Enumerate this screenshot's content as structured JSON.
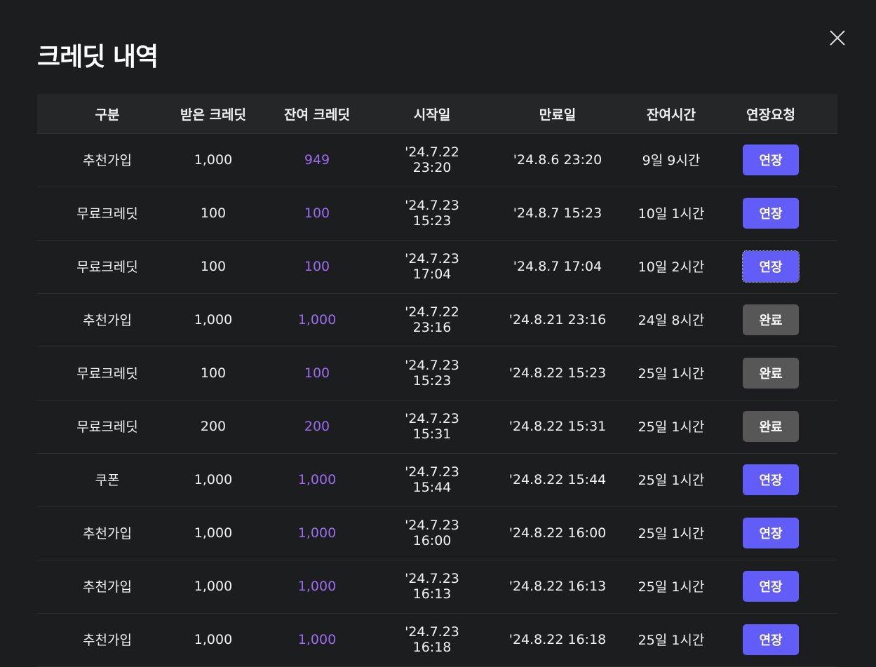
{
  "title": "크레딧 내역",
  "colors": {
    "accent": "#625cf8",
    "done": "#575757",
    "remaining": "#9b6cf0"
  },
  "columns": [
    "구분",
    "받은 크레딧",
    "잔여 크레딧",
    "시작일",
    "만료일",
    "잔여시간",
    "연장요청"
  ],
  "rows": [
    {
      "type": "추천가입",
      "received": "1,000",
      "remaining": "949",
      "start": "'24.7.22  23:20",
      "end": "'24.8.6  23:20",
      "time_left": "9일 9시간",
      "action": "연장",
      "status": "extend"
    },
    {
      "type": "무료크레딧",
      "received": "100",
      "remaining": "100",
      "start": "'24.7.23  15:23",
      "end": "'24.8.7  15:23",
      "time_left": "10일 1시간",
      "action": "연장",
      "status": "extend"
    },
    {
      "type": "무료크레딧",
      "received": "100",
      "remaining": "100",
      "start": "'24.7.23  17:04",
      "end": "'24.8.7  17:04",
      "time_left": "10일 2시간",
      "action": "연장",
      "status": "extend"
    },
    {
      "type": "추천가입",
      "received": "1,000",
      "remaining": "1,000",
      "start": "'24.7.22  23:16",
      "end": "'24.8.21  23:16",
      "time_left": "24일 8시간",
      "action": "완료",
      "status": "done"
    },
    {
      "type": "무료크레딧",
      "received": "100",
      "remaining": "100",
      "start": "'24.7.23  15:23",
      "end": "'24.8.22  15:23",
      "time_left": "25일 1시간",
      "action": "완료",
      "status": "done"
    },
    {
      "type": "무료크레딧",
      "received": "200",
      "remaining": "200",
      "start": "'24.7.23  15:31",
      "end": "'24.8.22  15:31",
      "time_left": "25일 1시간",
      "action": "완료",
      "status": "done"
    },
    {
      "type": "쿠폰",
      "received": "1,000",
      "remaining": "1,000",
      "start": "'24.7.23  15:44",
      "end": "'24.8.22  15:44",
      "time_left": "25일 1시간",
      "action": "연장",
      "status": "extend"
    },
    {
      "type": "추천가입",
      "received": "1,000",
      "remaining": "1,000",
      "start": "'24.7.23  16:00",
      "end": "'24.8.22  16:00",
      "time_left": "25일 1시간",
      "action": "연장",
      "status": "extend"
    },
    {
      "type": "추천가입",
      "received": "1,000",
      "remaining": "1,000",
      "start": "'24.7.23  16:13",
      "end": "'24.8.22  16:13",
      "time_left": "25일 1시간",
      "action": "연장",
      "status": "extend"
    },
    {
      "type": "추천가입",
      "received": "1,000",
      "remaining": "1,000",
      "start": "'24.7.23  16:18",
      "end": "'24.8.22  16:18",
      "time_left": "25일 1시간",
      "action": "연장",
      "status": "extend"
    }
  ]
}
